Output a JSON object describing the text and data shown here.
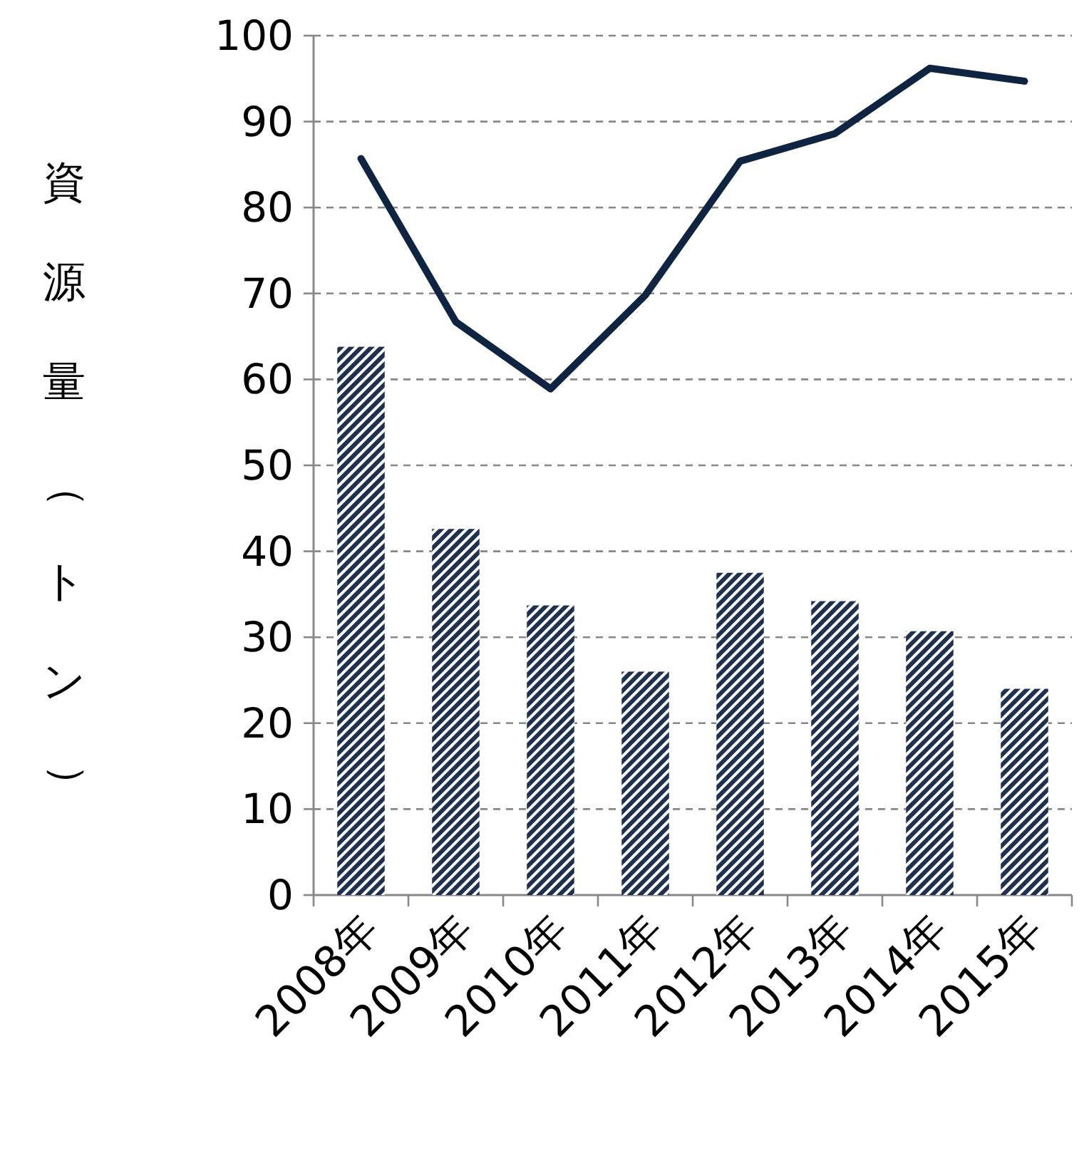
{
  "chart_data": {
    "type": "bar",
    "ylabel": "資源量（トン）",
    "categories": [
      "2008年",
      "2009年",
      "2010年",
      "2011年",
      "2012年",
      "2013年",
      "2014年",
      "2015年"
    ],
    "series": [
      {
        "color": "#1f3050",
        "values": [
          63.8,
          42.6,
          33.7,
          26.0,
          37.5,
          34.2,
          30.7,
          24.0
        ]
      },
      {
        "type": "line",
        "color": "#0f2440",
        "values": [
          85.7,
          66.7,
          58.9,
          69.8,
          85.4,
          88.6,
          96.2,
          94.7
        ]
      }
    ],
    "ylim": [
      0,
      100
    ],
    "yticks": [
      0,
      10,
      20,
      30,
      40,
      50,
      60,
      70,
      80,
      90,
      100
    ],
    "grid": "y",
    "marker": "none",
    "line_style": "solid"
  }
}
